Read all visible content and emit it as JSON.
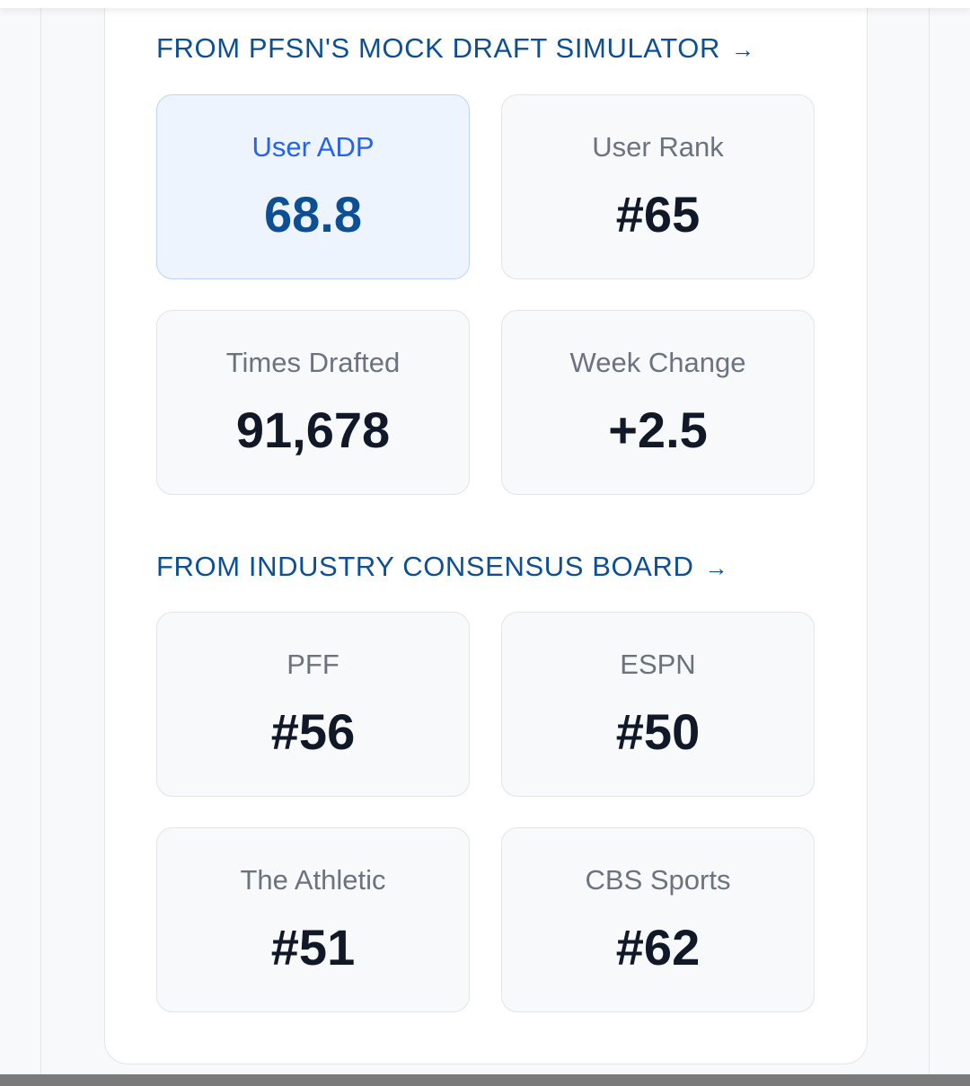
{
  "sections": [
    {
      "title": "FROM PFSN'S MOCK DRAFT SIMULATOR",
      "arrow": "→",
      "tiles": [
        {
          "label": "User ADP",
          "value": "68.8",
          "highlight": true
        },
        {
          "label": "User Rank",
          "value": "#65"
        },
        {
          "label": "Times Drafted",
          "value": "91,678"
        },
        {
          "label": "Week Change",
          "value": "+2.5"
        }
      ]
    },
    {
      "title": "FROM INDUSTRY CONSENSUS BOARD",
      "arrow": "→",
      "tiles": [
        {
          "label": "PFF",
          "value": "#56"
        },
        {
          "label": "ESPN",
          "value": "#50"
        },
        {
          "label": "The Athletic",
          "value": "#51"
        },
        {
          "label": "CBS Sports",
          "value": "#62"
        }
      ]
    }
  ],
  "colors": {
    "accent": "#0d4f94",
    "highlight_label": "#2563eb",
    "highlight_bg": "#edf4fe"
  }
}
